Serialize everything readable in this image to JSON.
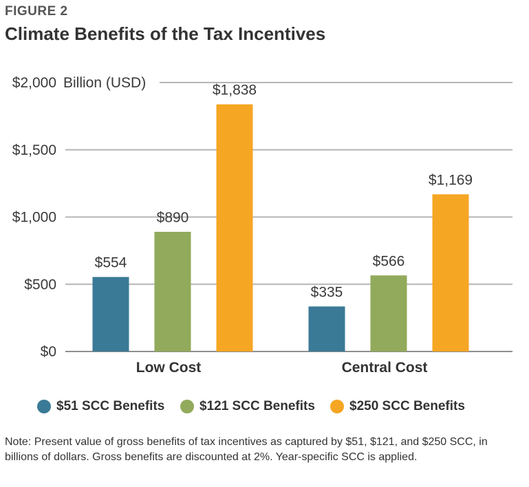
{
  "figure_label": "FIGURE 2",
  "title": "Climate Benefits of the Tax Incentives",
  "note": "Note: Present value of gross benefits of tax incentives as captured by $51, $121, and $250 SCC, in billions of dollars. Gross benefits are discounted at 2%. Year-specific SCC is applied.",
  "chart_data": {
    "type": "bar",
    "title": "Climate Benefits of the Tax Incentives",
    "ylabel": "Billion (USD)",
    "xlabel": "",
    "categories": [
      "Low Cost",
      "Central Cost"
    ],
    "series": [
      {
        "name": "$51 SCC Benefits",
        "values": [
          554,
          335
        ],
        "labels": [
          "$554",
          "$335"
        ],
        "color": "#3a7a96"
      },
      {
        "name": "$121 SCC Benefits",
        "values": [
          890,
          566
        ],
        "labels": [
          "$890",
          "$566"
        ],
        "color": "#92aa5b"
      },
      {
        "name": "$250 SCC Benefits",
        "values": [
          1838,
          1169
        ],
        "labels": [
          "$1,838",
          "$1,169"
        ],
        "color": "#f5a623"
      }
    ],
    "ylim": [
      0,
      2000
    ],
    "yticks": [
      0,
      500,
      1000,
      1500,
      2000
    ],
    "ytick_labels": [
      "$0",
      "$500",
      "$1,000",
      "$1,500",
      "$2,000"
    ],
    "grid": true,
    "legend_position": "bottom"
  }
}
